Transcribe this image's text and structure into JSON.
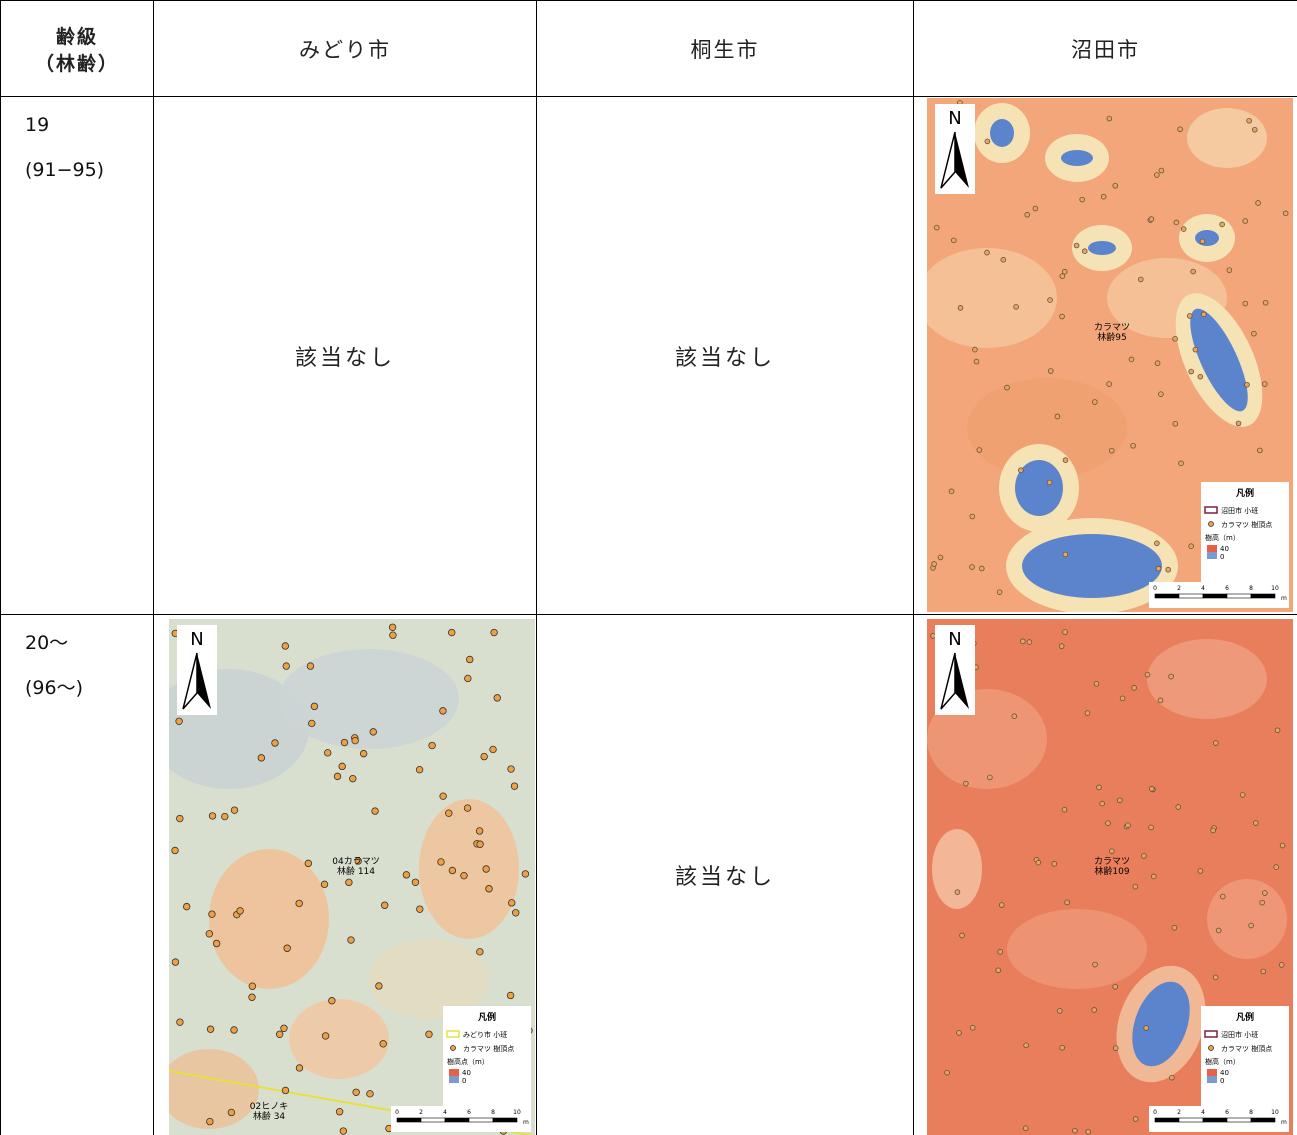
{
  "table": {
    "columns": [
      [
        "齢級",
        "（林齢）"
      ],
      "みどり市",
      "桐生市",
      "沼田市"
    ],
    "rows": [
      {
        "age_class": "19",
        "age_range": "(91−95)",
        "cells": [
          "該当なし",
          "該当なし",
          {
            "north": "N",
            "stand_labels": [
              [
                "カラマツ",
                "林齢95"
              ]
            ],
            "legend": {
              "title": "凡例",
              "items": [
                "沼田市 小班",
                "カラマツ 樹頂点"
              ],
              "scale_title": "樹高（m）",
              "scale_max": "40",
              "scale_min": "0"
            },
            "scale_bar": [
              "0",
              "2",
              "4",
              "6",
              "8",
              "10"
            ],
            "scale_unit": "m"
          }
        ]
      },
      {
        "age_class": "20～",
        "age_range": "(96～)",
        "cells": [
          {
            "north": "N",
            "stand_labels": [
              [
                "04カラマツ",
                "林齢 114"
              ],
              [
                "02ヒノキ",
                "林齢 34"
              ]
            ],
            "legend": {
              "title": "凡例",
              "items": [
                "みどり市 小班",
                "カラマツ 樹頂点"
              ],
              "scale_title": "樹高点（m）",
              "scale_max": "40",
              "scale_min": "0"
            },
            "scale_bar": [
              "0",
              "2",
              "4",
              "6",
              "8",
              "10"
            ],
            "scale_unit": "m"
          },
          "該当なし",
          {
            "north": "N",
            "stand_labels": [
              [
                "カラマツ",
                "林齢109"
              ]
            ],
            "legend": {
              "title": "凡例",
              "items": [
                "沼田市 小班",
                "カラマツ 樹頂点"
              ],
              "scale_title": "樹高（m）",
              "scale_max": "40",
              "scale_min": "0"
            },
            "scale_bar": [
              "0",
              "2",
              "4",
              "6",
              "8",
              "10"
            ],
            "scale_unit": "m"
          }
        ]
      }
    ]
  }
}
